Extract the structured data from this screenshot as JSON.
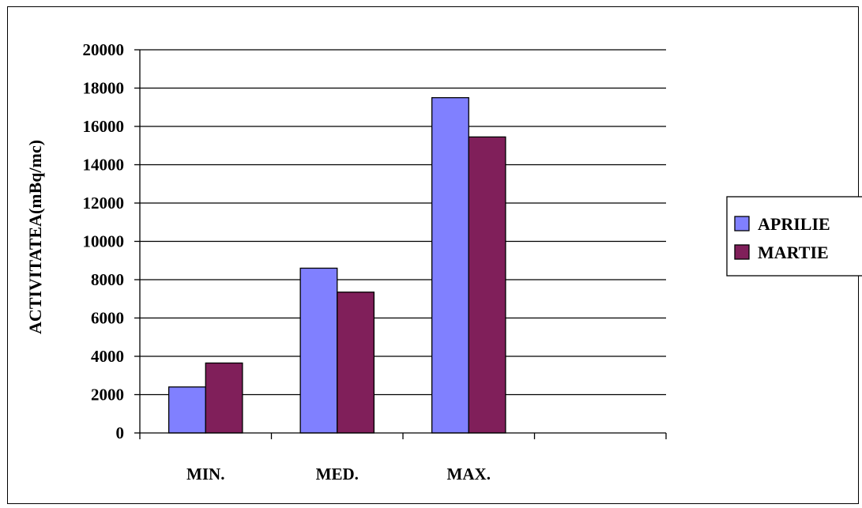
{
  "chart_data": {
    "type": "bar",
    "title": "",
    "xlabel": "",
    "ylabel": "ACTIVITATEA(mBq/mc)",
    "ylim": [
      0,
      20000
    ],
    "yticks": [
      0,
      2000,
      4000,
      6000,
      8000,
      10000,
      12000,
      14000,
      16000,
      18000,
      20000
    ],
    "categories": [
      "MIN.",
      "MED.",
      "MAX.",
      ""
    ],
    "series": [
      {
        "name": "APRILIE",
        "color": "#8080ff",
        "values": [
          2400,
          8600,
          17500,
          null
        ]
      },
      {
        "name": "MARTIE",
        "color": "#801f5a",
        "values": [
          3650,
          7350,
          15450,
          null
        ]
      }
    ],
    "grid": true,
    "legend_position": "right"
  }
}
